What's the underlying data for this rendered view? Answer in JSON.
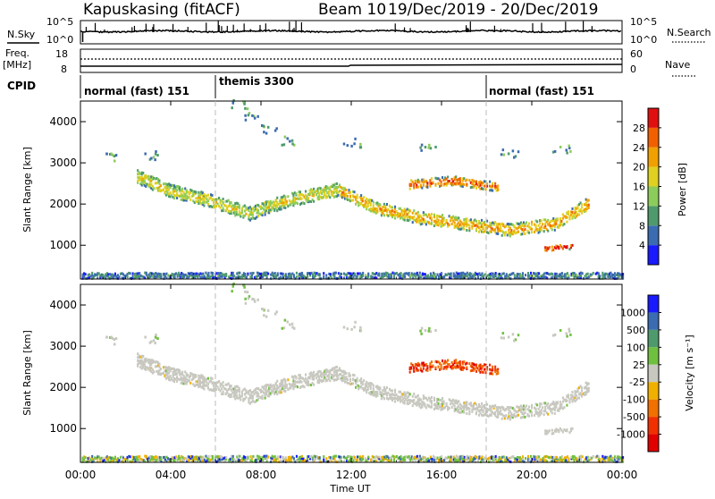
{
  "header": {
    "station": "Kapuskasing (fitACF)",
    "beam": "Beam 10",
    "dates": "19/Dec/2019 - 20/Dec/2019"
  },
  "nsky_panel": {
    "left_label": "N.Sky",
    "right_label": "N.Search",
    "left_ticks": [
      "10^5",
      "10^0"
    ],
    "right_ticks": [
      "10^5",
      "10^0"
    ]
  },
  "freq_panel": {
    "left_label_1": "Freq.",
    "left_label_2": "[MHz]",
    "left_ticks": [
      "18",
      "8"
    ],
    "right_label": "Nave",
    "right_ticks": [
      "60",
      "0"
    ]
  },
  "cpid": {
    "label": "CPID",
    "modes": [
      {
        "name": "normal (fast) 151",
        "start_h": 0
      },
      {
        "name": "themis 3300",
        "start_h": 6
      },
      {
        "name": "normal (fast) 151",
        "start_h": 18
      }
    ]
  },
  "x_axis": {
    "label": "Time UT",
    "ticks": [
      "00:00",
      "04:00",
      "08:00",
      "12:00",
      "16:00",
      "20:00",
      "00:00"
    ],
    "range_h": [
      0,
      24
    ]
  },
  "power_panel": {
    "ylabel": "Slant Range [km]",
    "yticks": [
      "1000",
      "2000",
      "3000",
      "4000"
    ],
    "colorbar_label": "Power [dB]",
    "colorbar_ticks": [
      "4",
      "8",
      "12",
      "16",
      "20",
      "24",
      "28"
    ],
    "colors": [
      "#1a1aff",
      "#3b6bb0",
      "#4f9a6c",
      "#8ccc5a",
      "#e0d020",
      "#f0a000",
      "#f06000",
      "#e01010"
    ]
  },
  "velocity_panel": {
    "ylabel": "Slant Range [km]",
    "yticks": [
      "1000",
      "2000",
      "3000",
      "4000"
    ],
    "colorbar_label": "Velocity [m s⁻¹]",
    "colorbar_ticks": [
      "1000",
      "500",
      "100",
      "25",
      "-25",
      "-100",
      "-500",
      "-1000"
    ],
    "colors": [
      "#1a1aff",
      "#3b6bb0",
      "#4f9a6c",
      "#70c040",
      "#c8c8c0",
      "#f0b000",
      "#f07000",
      "#f03000",
      "#e00000"
    ]
  },
  "chart_data": [
    {
      "type": "heatmap",
      "title": "Power",
      "xlabel": "Time UT",
      "ylabel": "Slant Range [km]",
      "xlim_h": [
        0,
        24
      ],
      "ylim_km": [
        180,
        4500
      ],
      "scatter_bands": [
        {
          "h_start": 2.5,
          "h_end": 11.5,
          "range_track_km": [
            [
              2.5,
              2650
            ],
            [
              4,
              2300
            ],
            [
              5.5,
              2100
            ],
            [
              7.5,
              1750
            ],
            [
              9,
              2050
            ],
            [
              11.5,
              2350
            ]
          ],
          "width_km": 320,
          "dominant_db": 16
        },
        {
          "h_start": 11.5,
          "h_end": 22.5,
          "range_track_km": [
            [
              11.5,
              2300
            ],
            [
              13,
              1900
            ],
            [
              15,
              1650
            ],
            [
              17,
              1500
            ],
            [
              19,
              1350
            ],
            [
              21,
              1500
            ],
            [
              22.5,
              2000
            ]
          ],
          "width_km": 300,
          "dominant_db": 20
        },
        {
          "h_start": 14.5,
          "h_end": 18.5,
          "range_track_km": [
            [
              14.5,
              2450
            ],
            [
              16.5,
              2550
            ],
            [
              18.5,
              2400
            ]
          ],
          "width_km": 220,
          "dominant_db": 24
        },
        {
          "h_start": 0.0,
          "h_end": 24.0,
          "range_track_km": [
            [
              0,
              250
            ],
            [
              24,
              250
            ]
          ],
          "width_km": 140,
          "dominant_db": 8
        },
        {
          "h_start": 20.5,
          "h_end": 21.8,
          "range_track_km": [
            [
              20.5,
              900
            ],
            [
              21.8,
              950
            ]
          ],
          "width_km": 120,
          "dominant_db": 28
        }
      ]
    },
    {
      "type": "heatmap",
      "title": "Velocity",
      "xlabel": "Time UT",
      "ylabel": "Slant Range [km]",
      "xlim_h": [
        0,
        24
      ],
      "ylim_km": [
        180,
        4500
      ],
      "scatter_bands": [
        {
          "h_start": 2.5,
          "h_end": 22.5,
          "note_velocity_ms": 0,
          "dominant_class": "-25 to 25"
        },
        {
          "h_start": 14.5,
          "h_end": 18.5,
          "range_track_km": [
            [
              14.5,
              2450
            ],
            [
              16.5,
              2550
            ],
            [
              18.5,
              2450
            ]
          ],
          "dominant_velocity_ms": -300
        }
      ]
    }
  ]
}
